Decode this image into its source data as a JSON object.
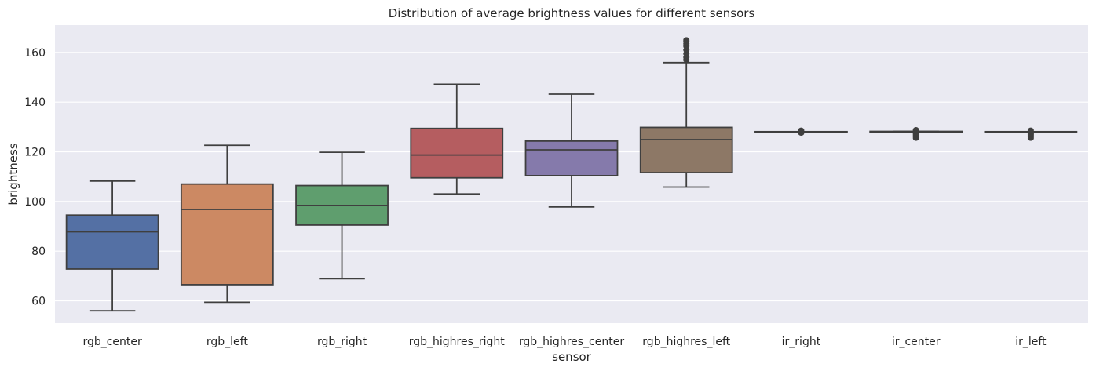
{
  "chart_data": {
    "type": "box",
    "title": "Distribution of average brightness values for different sensors",
    "xlabel": "sensor",
    "ylabel": "brightness",
    "ylim": [
      51,
      171
    ],
    "yticks": [
      60,
      80,
      100,
      120,
      140,
      160
    ],
    "grid": true,
    "legend": "none",
    "categories": [
      "rgb_center",
      "rgb_left",
      "rgb_right",
      "rgb_highres_right",
      "rgb_highres_center",
      "rgb_highres_left",
      "ir_right",
      "ir_center",
      "ir_left"
    ],
    "boxes": [
      {
        "label": "rgb_center",
        "whislo": 56.0,
        "q1": 72.8,
        "med": 87.8,
        "q3": 94.5,
        "whishi": 108.2,
        "fliers": [],
        "color": "#5470a4"
      },
      {
        "label": "rgb_left",
        "whislo": 59.4,
        "q1": 66.5,
        "med": 96.8,
        "q3": 107.0,
        "whishi": 122.6,
        "fliers": [],
        "color": "#cc8963"
      },
      {
        "label": "rgb_right",
        "whislo": 68.9,
        "q1": 90.5,
        "med": 98.4,
        "q3": 106.4,
        "whishi": 119.8,
        "fliers": [],
        "color": "#5f9e6e"
      },
      {
        "label": "rgb_highres_right",
        "whislo": 103.0,
        "q1": 109.5,
        "med": 118.7,
        "q3": 129.4,
        "whishi": 147.2,
        "fliers": [],
        "color": "#b55d60"
      },
      {
        "label": "rgb_highres_center",
        "whislo": 97.8,
        "q1": 110.4,
        "med": 120.8,
        "q3": 124.3,
        "whishi": 143.2,
        "fliers": [],
        "color": "#857aab"
      },
      {
        "label": "rgb_highres_left",
        "whislo": 105.8,
        "q1": 111.6,
        "med": 124.9,
        "q3": 129.8,
        "whishi": 155.9,
        "fliers": [
          157.0,
          158.0,
          159.5,
          161.0,
          162.5,
          163.5,
          164.5,
          165.0
        ],
        "color": "#8d7866"
      },
      {
        "label": "ir_right",
        "whislo": 128.0,
        "q1": 128.0,
        "med": 128.0,
        "q3": 128.1,
        "whishi": 128.1,
        "fliers": [
          127.6,
          128.6
        ],
        "color": "#d095bf"
      },
      {
        "label": "ir_center",
        "whislo": 127.8,
        "q1": 127.8,
        "med": 128.0,
        "q3": 128.2,
        "whishi": 128.2,
        "fliers": [
          125.5,
          126.0,
          126.5,
          127.0,
          127.4,
          128.5,
          128.8
        ],
        "color": "#8c8c8c"
      },
      {
        "label": "ir_left",
        "whislo": 127.9,
        "q1": 127.9,
        "med": 128.0,
        "q3": 128.1,
        "whishi": 128.1,
        "fliers": [
          125.5,
          126.0,
          126.5,
          127.0,
          127.4,
          128.6
        ],
        "color": "#c1b37f"
      }
    ]
  }
}
